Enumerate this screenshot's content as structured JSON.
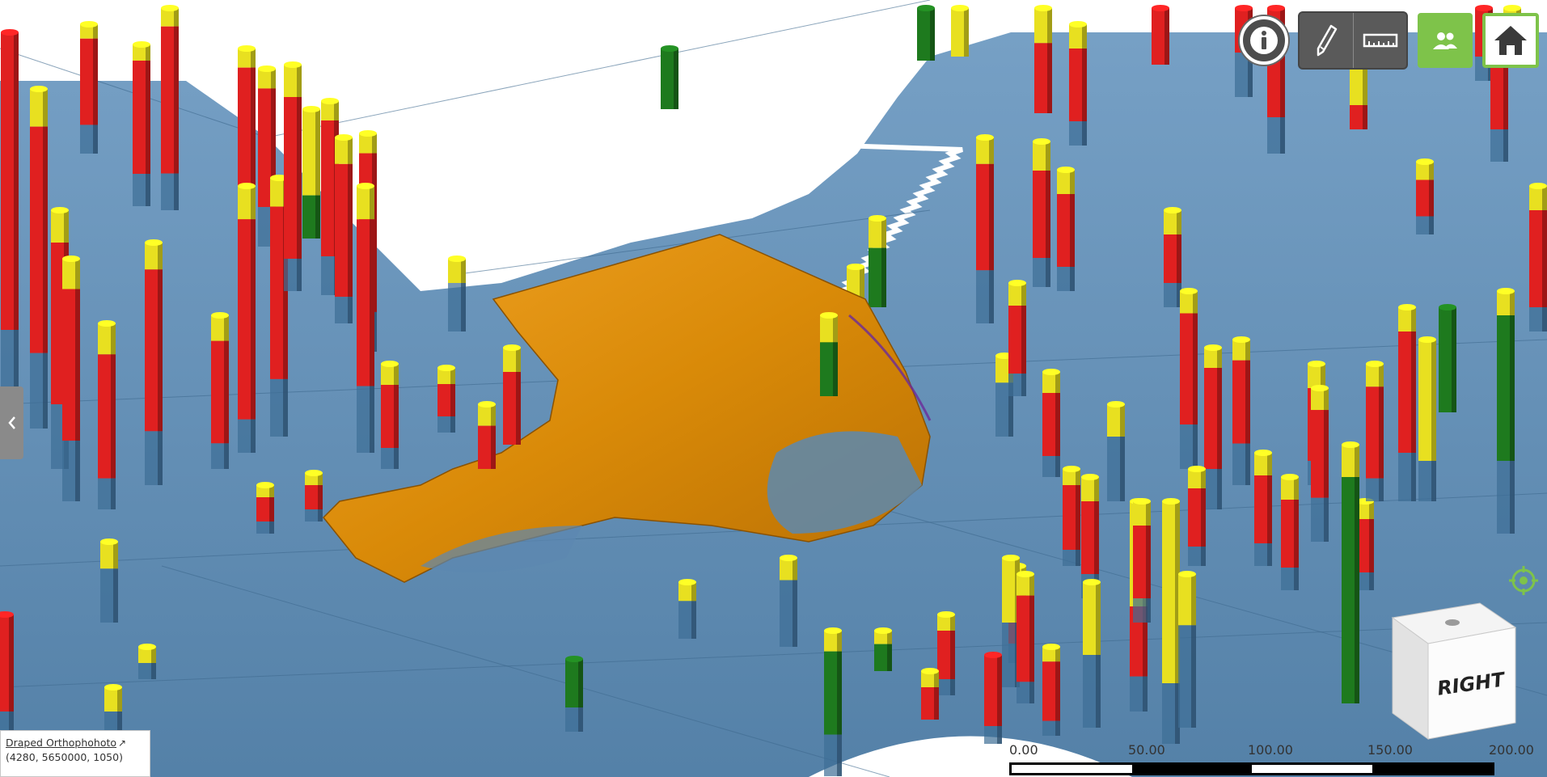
{
  "toolbar": {
    "info_icon": "info-icon",
    "draw_icon": "pencil-icon",
    "measure_icon": "ruler-icon",
    "users_icon": "people-icon",
    "home_icon": "home-icon"
  },
  "side_panel": {
    "toggle_icon": "chevron-left-icon"
  },
  "layer_info": {
    "name": "Draped Orthophohoto",
    "link_icon": "external-link-icon",
    "coordinates": "(4280, 5650000, 1050)"
  },
  "scale_bar": {
    "labels": [
      "0.00",
      "50.00",
      "100.00",
      "150.00",
      "200.00"
    ]
  },
  "nav_cube": {
    "face_label": "RIGHT"
  },
  "colors": {
    "terrain": "#4f7fa8",
    "surface": "#e0900a",
    "red_interval": "#e02020",
    "yellow_interval": "#e8e020",
    "green_interval": "#1e7a1e",
    "accent_green": "#7ec34a"
  }
}
